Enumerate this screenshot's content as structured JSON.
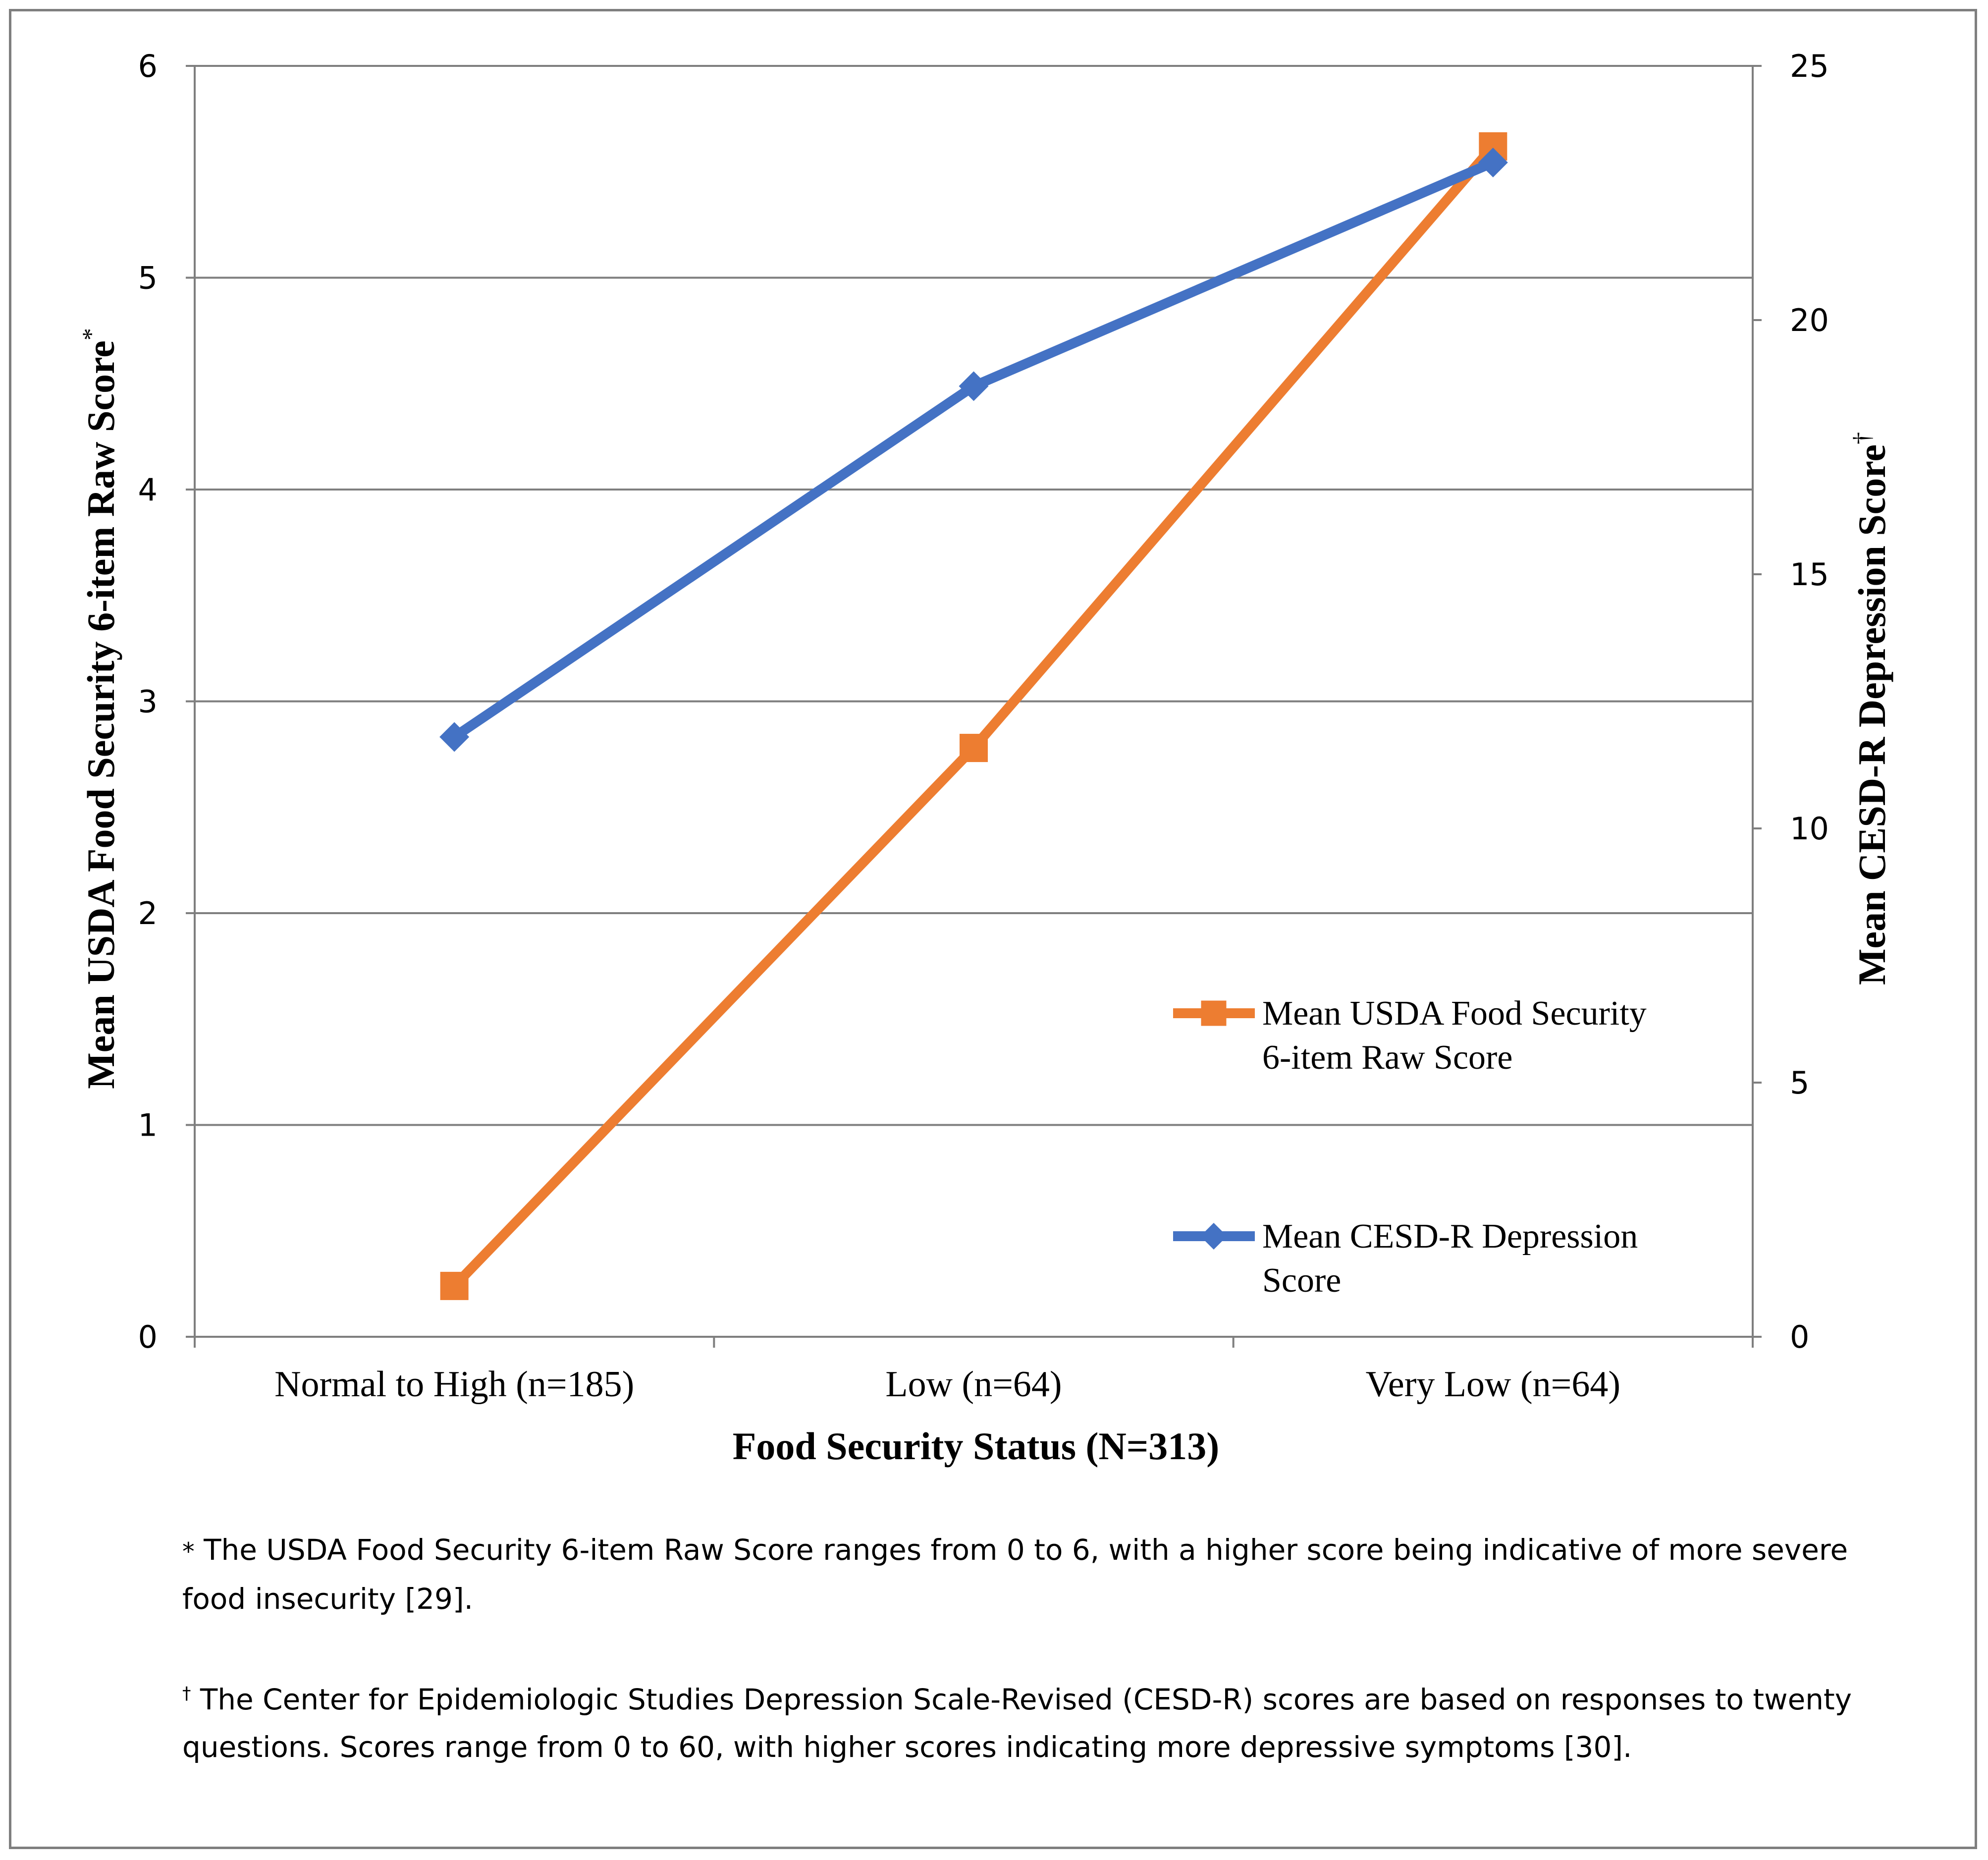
{
  "chart_data": {
    "type": "line",
    "title": "",
    "categories": [
      "Normal to High (n=185)",
      "Low (n=64)",
      "Very Low (n=64)"
    ],
    "xlabel": "Food Security Status (N=313)",
    "ylabel_left": "Mean USDA Food Security 6-item Raw Score",
    "ylabel_left_mark": "*",
    "ylabel_right": "Mean CESD-R Depression Score",
    "ylabel_right_mark": "†",
    "ylim_left": [
      0,
      6
    ],
    "yticks_left": [
      "0",
      "1",
      "2",
      "3",
      "4",
      "5",
      "6"
    ],
    "ylim_right": [
      0,
      25
    ],
    "yticks_right": [
      "0",
      "5",
      "10",
      "15",
      "20",
      "25"
    ],
    "grid": true,
    "legend_position": "right",
    "series": [
      {
        "name_line1": "Mean USDA Food Security",
        "name_line2": "6-item Raw Score",
        "axis": "left",
        "marker": "square",
        "color": "#ED7D31",
        "values": [
          0.24,
          2.78,
          5.62
        ]
      },
      {
        "name_line1": "Mean CESD-R Depression",
        "name_line2": "Score",
        "axis": "right",
        "marker": "diamond",
        "color": "#4472C4",
        "values": [
          11.8,
          18.7,
          23.1
        ]
      }
    ]
  },
  "footnotes": {
    "note1_mark": "*",
    "note1_text": " The USDA Food Security 6-item Raw Score ranges from 0 to 6, with a higher score being indicative of more severe food insecurity [29].",
    "note2_mark": "†",
    "note2_text": " The Center for Epidemiologic Studies Depression Scale-Revised (CESD-R) scores are based on responses to twenty questions. Scores range from 0 to 60, with higher scores indicating more depressive symptoms [30]."
  }
}
